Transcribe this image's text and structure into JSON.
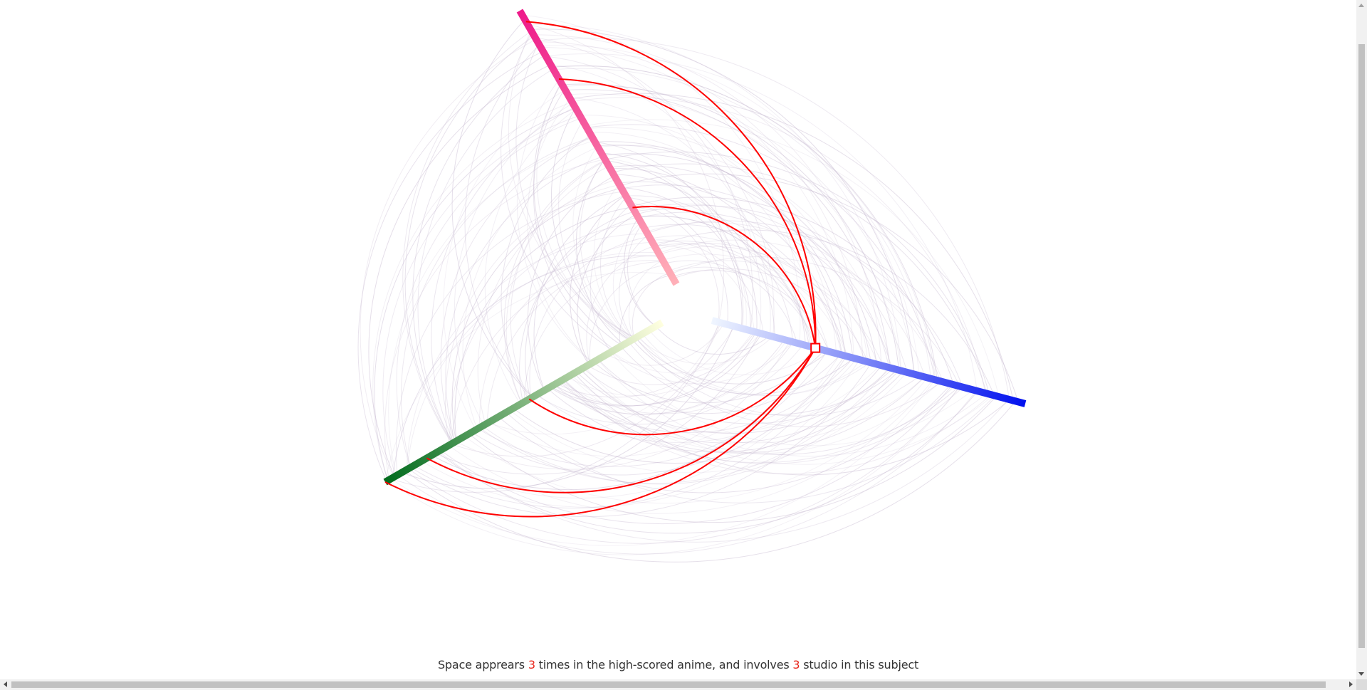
{
  "chart_data": {
    "type": "hive-plot",
    "axes": [
      {
        "name": "",
        "color_start": "#ffb0b8",
        "color_end": "#ee1a8a"
      },
      {
        "name": "",
        "color_start": "#f0f6ff",
        "color_end": "#0010ee"
      },
      {
        "name": "",
        "color_start": "#ffffe0",
        "color_end": "#006a1c"
      }
    ],
    "link_color": "#c6b8d0",
    "highlight_color": "#ff0000",
    "selected_node": "Space",
    "background_link_count": 220,
    "highlighted_links": [
      {
        "from_axis": 1,
        "from_pos": 0.33,
        "to_axis": 0,
        "to_pos": 0.96
      },
      {
        "from_axis": 1,
        "from_pos": 0.33,
        "to_axis": 0,
        "to_pos": 0.75
      },
      {
        "from_axis": 1,
        "from_pos": 0.33,
        "to_axis": 0,
        "to_pos": 0.28
      },
      {
        "from_axis": 1,
        "from_pos": 0.33,
        "to_axis": 2,
        "to_pos": 0.48
      },
      {
        "from_axis": 1,
        "from_pos": 0.33,
        "to_axis": 2,
        "to_pos": 0.85
      },
      {
        "from_axis": 1,
        "from_pos": 0.33,
        "to_axis": 2,
        "to_pos": 1.0
      }
    ]
  },
  "caption": {
    "term": "Space",
    "text_1": " apprears ",
    "count": "3",
    "text_2": " times in the high-scored anime, and involves ",
    "studio_count": "3",
    "text_3": " studio in this subject"
  }
}
